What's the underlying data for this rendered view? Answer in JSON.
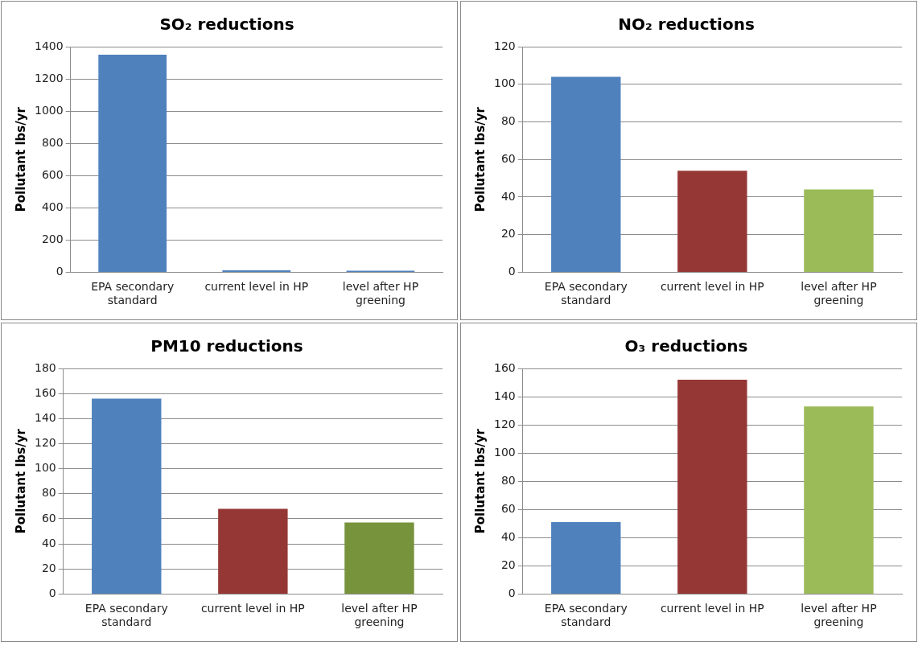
{
  "chart_data": [
    {
      "type": "bar",
      "title": "SO₂ reductions",
      "ylabel": "Pollutant lbs/yr",
      "categories": [
        "EPA secondary standard",
        "current level in HP",
        "level after HP greening"
      ],
      "values": [
        1350,
        12,
        10
      ],
      "colors": [
        "#4f81bd",
        "#4f81bd",
        "#4f81bd"
      ],
      "ylim": [
        0,
        1400
      ],
      "yticks": [
        0,
        200,
        400,
        600,
        800,
        1000,
        1200,
        1400
      ],
      "grid": "y"
    },
    {
      "type": "bar",
      "title": "NO₂ reductions",
      "ylabel": "Pollutant lbs/yr",
      "categories": [
        "EPA secondary standard",
        "current level in HP",
        "level after HP greening"
      ],
      "values": [
        104,
        54,
        44
      ],
      "colors": [
        "#4f81bd",
        "#953735",
        "#9bbb59"
      ],
      "ylim": [
        0,
        120
      ],
      "yticks": [
        0,
        20,
        40,
        60,
        80,
        100,
        120
      ],
      "grid": "y"
    },
    {
      "type": "bar",
      "title": "PM10 reductions",
      "ylabel": "Pollutant lbs/yr",
      "categories": [
        "EPA secondary standard",
        "current level in HP",
        "level after HP greening"
      ],
      "values": [
        156,
        68,
        57
      ],
      "colors": [
        "#4f81bd",
        "#953735",
        "#77933c"
      ],
      "ylim": [
        0,
        180
      ],
      "yticks": [
        0,
        20,
        40,
        60,
        80,
        100,
        120,
        140,
        160,
        180
      ],
      "grid": "y"
    },
    {
      "type": "bar",
      "title": "O₃ reductions",
      "ylabel": "Pollutant lbs/yr",
      "categories": [
        "EPA secondary standard",
        "current level in HP",
        "level after HP greening"
      ],
      "values": [
        51,
        152,
        133
      ],
      "colors": [
        "#4f81bd",
        "#953735",
        "#9bbb59"
      ],
      "ylim": [
        0,
        160
      ],
      "yticks": [
        0,
        20,
        40,
        60,
        80,
        100,
        120,
        140,
        160
      ],
      "grid": "y"
    }
  ]
}
